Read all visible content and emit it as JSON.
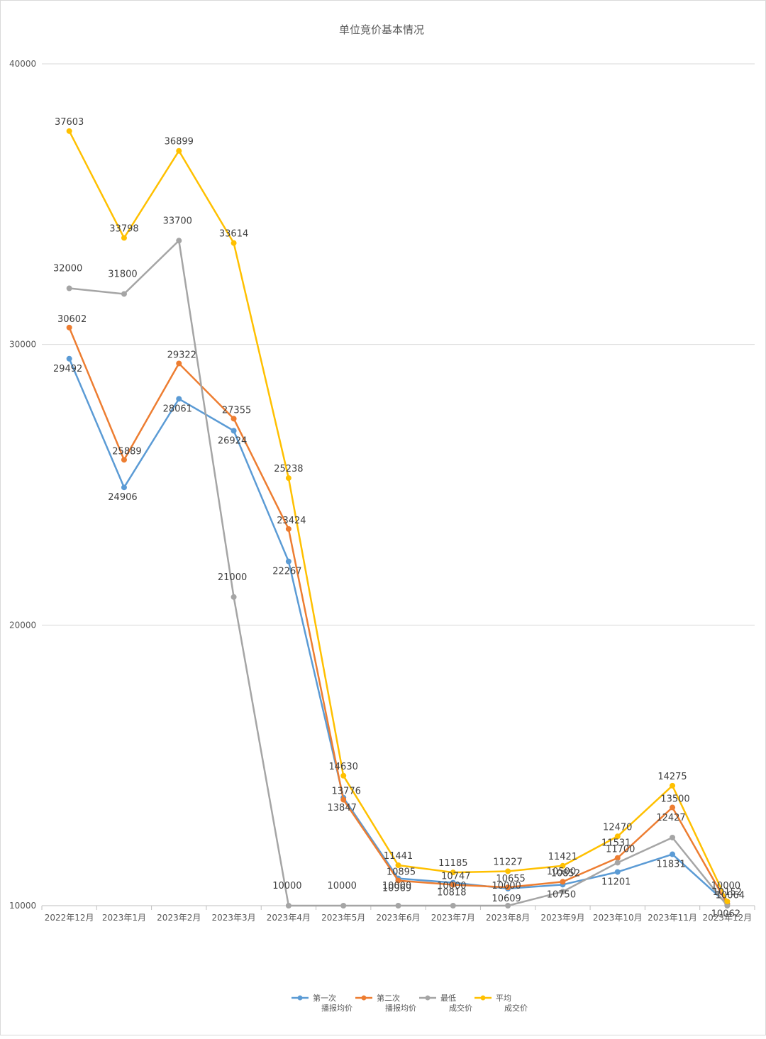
{
  "chart_data": {
    "type": "line",
    "title": "单位竞价基本情况",
    "categories": [
      "2022年12月",
      "2023年1月",
      "2023年2月",
      "2023年3月",
      "2023年4月",
      "2023年5月",
      "2023年6月",
      "2023年7月",
      "2023年8月",
      "2023年9月",
      "2023年10月",
      "2023年11月",
      "2023年12月"
    ],
    "ylim": [
      10000,
      40000
    ],
    "yticks": [
      "10000",
      "20000",
      "30000",
      "40000"
    ],
    "grid": true,
    "legend_position": "bottom",
    "series": [
      {
        "name": "第一次\n播报均价",
        "color": "#5b9bd5",
        "values": [
          29492,
          24906,
          28061,
          26924,
          22267,
          13847,
          10969,
          10818,
          10609,
          10750,
          11201,
          11831,
          10062
        ]
      },
      {
        "name": "第二次\n播报均价",
        "color": "#ed7d31",
        "values": [
          30602,
          25889,
          29322,
          27355,
          23424,
          13776,
          10895,
          10747,
          10655,
          10852,
          11700,
          13500,
          10064
        ]
      },
      {
        "name": "最低\n成交价",
        "color": "#a5a5a5",
        "values": [
          32000,
          31800,
          33700,
          21000,
          10000,
          10000,
          10000,
          10000,
          10000,
          10500,
          11531,
          12427,
          10000
        ]
      },
      {
        "name": "平均\n成交价",
        "color": "#ffc000",
        "values": [
          37603,
          33798,
          36899,
          33614,
          25238,
          14630,
          11441,
          11185,
          11227,
          11421,
          12470,
          14275,
          10152
        ]
      }
    ]
  }
}
